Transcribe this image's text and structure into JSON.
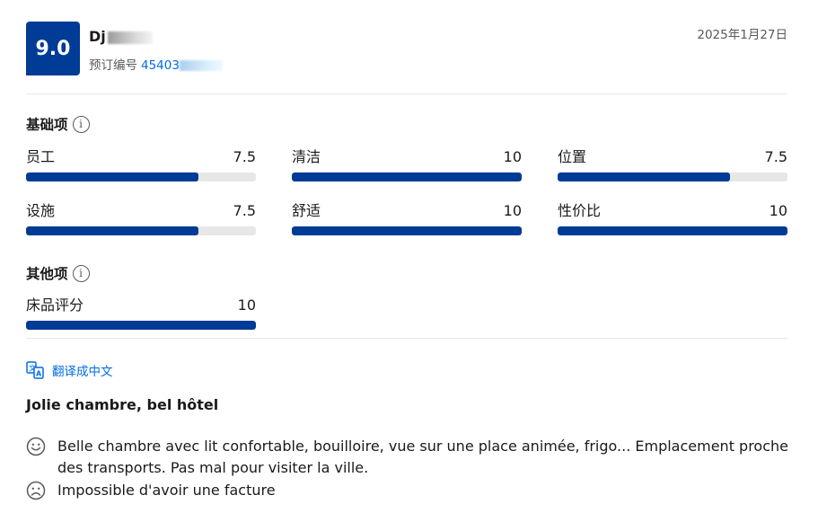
{
  "review": {
    "score": "9.0",
    "reviewer_name": "Dj",
    "booking_label": "预订编号",
    "booking_number": "45403",
    "date": "2025年1月27日"
  },
  "base_section": {
    "title": "基础项",
    "metrics": [
      {
        "label": "员工",
        "value": "7.5",
        "fraction": 0.75
      },
      {
        "label": "清洁",
        "value": "10",
        "fraction": 1.0
      },
      {
        "label": "位置",
        "value": "7.5",
        "fraction": 0.75
      },
      {
        "label": "设施",
        "value": "7.5",
        "fraction": 0.75
      },
      {
        "label": "舒适",
        "value": "10",
        "fraction": 1.0
      },
      {
        "label": "性价比",
        "value": "10",
        "fraction": 1.0
      }
    ]
  },
  "other_section": {
    "title": "其他项",
    "metrics": [
      {
        "label": "床品评分",
        "value": "10",
        "fraction": 1.0
      }
    ]
  },
  "translate_label": "翻译成中文",
  "review_title": "Jolie chambre, bel hôtel",
  "positive_comment": "Belle chambre avec lit confortable, bouilloire, vue sur une place animée, frigo... Emplacement proche des transports. Pas mal pour visiter la ville.",
  "negative_comment": "Impossible d'avoir une facture",
  "icons": {
    "info": "info-icon",
    "translate": "translate-icon",
    "positive": "smile-icon",
    "negative": "frown-icon"
  },
  "colors": {
    "brand": "#003b95",
    "link": "#006ce4",
    "track": "#e7e7e7"
  }
}
